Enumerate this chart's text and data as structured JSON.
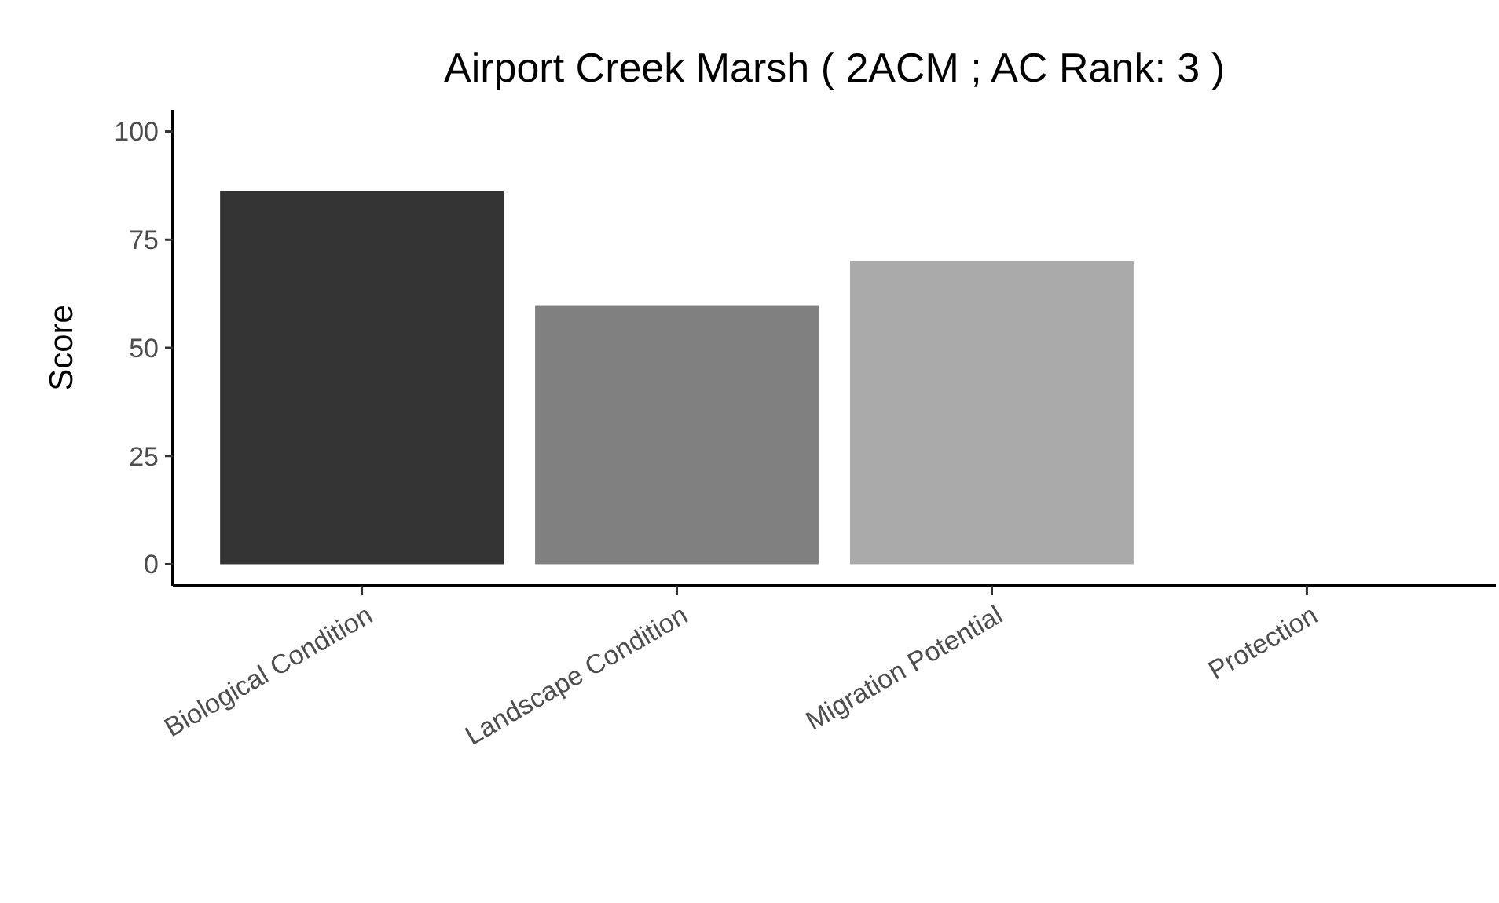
{
  "chart_data": {
    "type": "bar",
    "title": "Airport Creek Marsh ( 2ACM ; AC Rank: 3 )",
    "ylabel": "Score",
    "categories": [
      "Biological Condition",
      "Landscape Condition",
      "Migration Potential",
      "Protection"
    ],
    "values": [
      86.3,
      59.7,
      70,
      0
    ],
    "colors": [
      "#333333",
      "#808080",
      "#aaaaaa",
      "#d4d4d4"
    ],
    "ylim": [
      -5,
      105
    ],
    "yticks": [
      0,
      25,
      50,
      75,
      100
    ],
    "grid": false
  }
}
